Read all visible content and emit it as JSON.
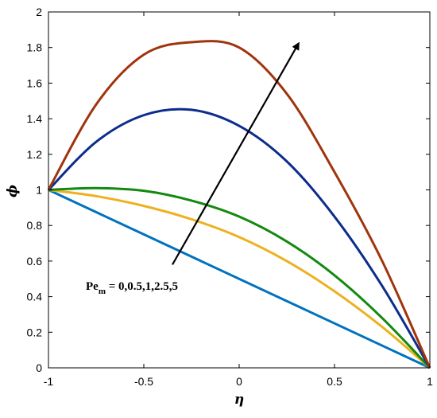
{
  "chart_data": {
    "type": "line",
    "xlabel": "η",
    "ylabel": "ϕ",
    "xlim": [
      -1,
      1
    ],
    "ylim": [
      0,
      2
    ],
    "xticks": [
      -1,
      -0.5,
      0,
      0.5,
      1
    ],
    "xtick_labels": [
      "-1",
      "-0.5",
      "0",
      "0.5",
      "1"
    ],
    "yticks": [
      0,
      0.2,
      0.4,
      0.6,
      0.8,
      1,
      1.2,
      1.4,
      1.6,
      1.8,
      2
    ],
    "ytick_labels": [
      "0",
      "0.2",
      "0.4",
      "0.6",
      "0.8",
      "1",
      "1.2",
      "1.4",
      "1.6",
      "1.8",
      "2"
    ],
    "grid": false,
    "annotation": {
      "main": "Pe",
      "sub": "m",
      "rest": " = 0,0.5,1,2.5,5",
      "arrow_from": [
        -0.35,
        0.58
      ],
      "arrow_to": [
        0.31,
        1.82
      ]
    },
    "series": [
      {
        "color": "#0072BD",
        "x": [
          -1,
          1
        ],
        "values": [
          1,
          0
        ]
      },
      {
        "color": "#EDB120",
        "x": [
          -1,
          -0.75,
          -0.5,
          -0.25,
          0,
          0.25,
          0.5,
          0.75,
          1
        ],
        "values": [
          1,
          0.965,
          0.91,
          0.835,
          0.735,
          0.6,
          0.43,
          0.23,
          0
        ]
      },
      {
        "color": "#138A0F",
        "x": [
          -1,
          -0.75,
          -0.5,
          -0.25,
          0,
          0.25,
          0.5,
          0.75,
          1
        ],
        "values": [
          1,
          1.01,
          0.995,
          0.94,
          0.85,
          0.71,
          0.52,
          0.28,
          0
        ]
      },
      {
        "color": "#0D2D8C",
        "x": [
          -1,
          -0.75,
          -0.5,
          -0.25,
          0,
          0.25,
          0.5,
          0.75,
          1
        ],
        "values": [
          1,
          1.27,
          1.42,
          1.45,
          1.36,
          1.16,
          0.85,
          0.46,
          0
        ]
      },
      {
        "color": "#A0340C",
        "x": [
          -1,
          -0.75,
          -0.5,
          -0.25,
          0,
          0.25,
          0.5,
          0.75,
          1
        ],
        "values": [
          1,
          1.48,
          1.76,
          1.83,
          1.8,
          1.54,
          1.1,
          0.6,
          0
        ]
      }
    ]
  }
}
